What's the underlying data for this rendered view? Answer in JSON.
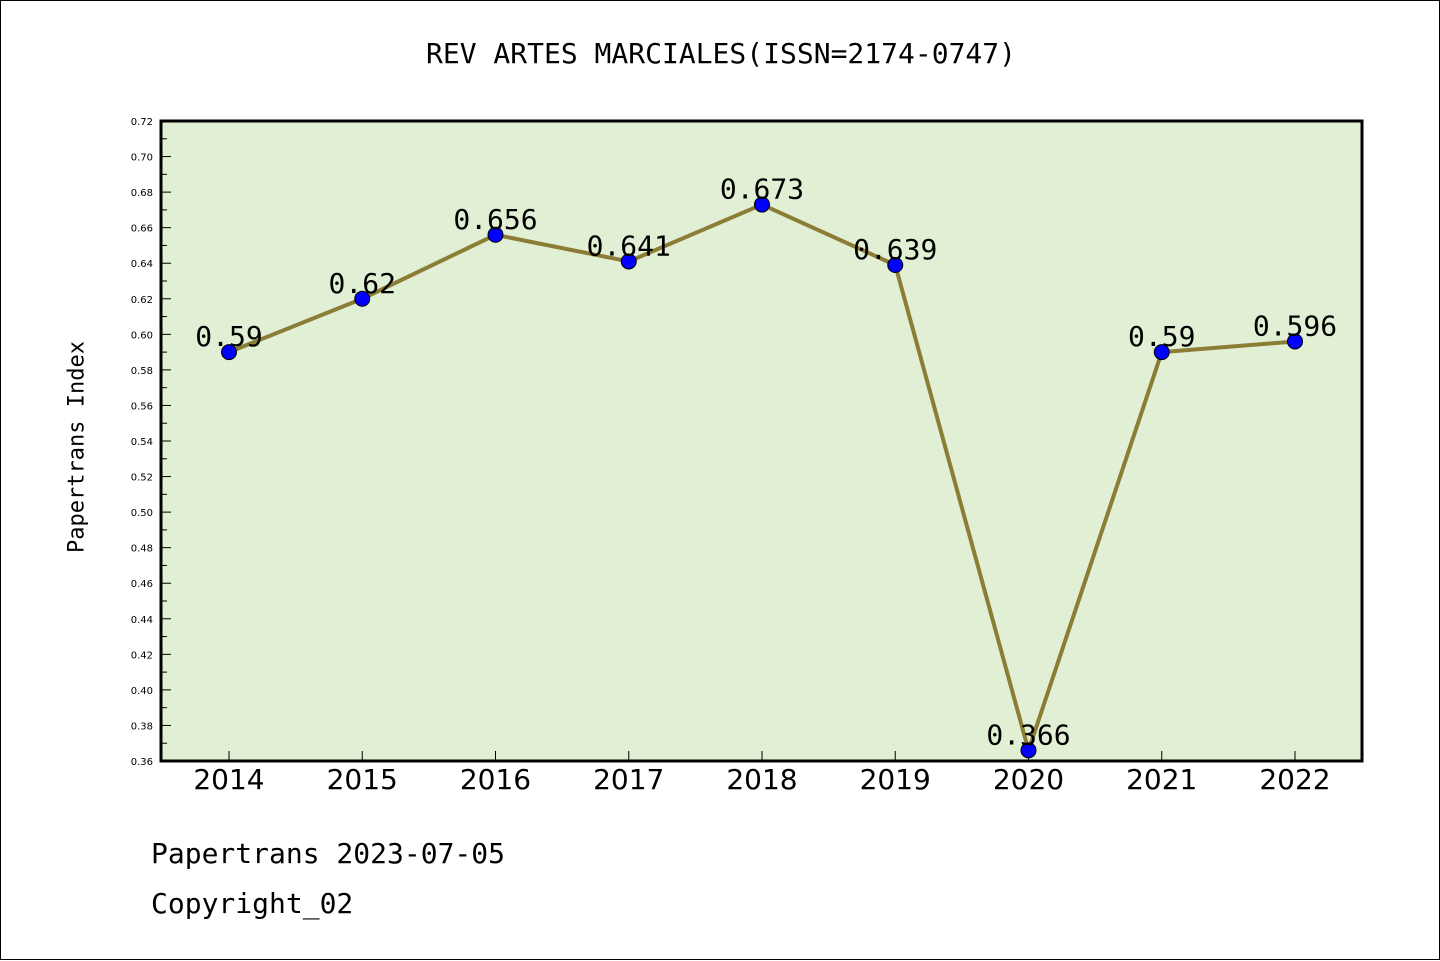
{
  "chart_data": {
    "type": "line",
    "title": "REV ARTES MARCIALES(ISSN=2174-0747)",
    "xlabel": "",
    "ylabel": "Papertrans Index",
    "categories": [
      "2014",
      "2015",
      "2016",
      "2017",
      "2018",
      "2019",
      "2020",
      "2021",
      "2022"
    ],
    "series": [
      {
        "values": [
          0.59,
          0.62,
          0.656,
          0.641,
          0.673,
          0.639,
          0.366,
          0.59,
          0.596
        ],
        "labels": [
          "0.59",
          "0.62",
          "0.656",
          "0.641",
          "0.673",
          "0.639",
          "0.366",
          "0.59",
          "0.596"
        ]
      }
    ],
    "ylim": [
      0.36,
      0.72
    ],
    "yticks": [
      "0.36",
      "0.38",
      "0.40",
      "0.42",
      "0.44",
      "0.46",
      "0.48",
      "0.50",
      "0.52",
      "0.54",
      "0.56",
      "0.58",
      "0.60",
      "0.62",
      "0.64",
      "0.66",
      "0.68",
      "0.70",
      "0.72"
    ],
    "grid": false,
    "legend": "none",
    "colors": {
      "plot_background": "#e1efd4",
      "line": "#8b7d35",
      "marker": "#0000ff",
      "frame": "#000000"
    }
  },
  "footer": {
    "date_line": "Papertrans 2023-07-05",
    "copyright": "Copyright_02"
  }
}
